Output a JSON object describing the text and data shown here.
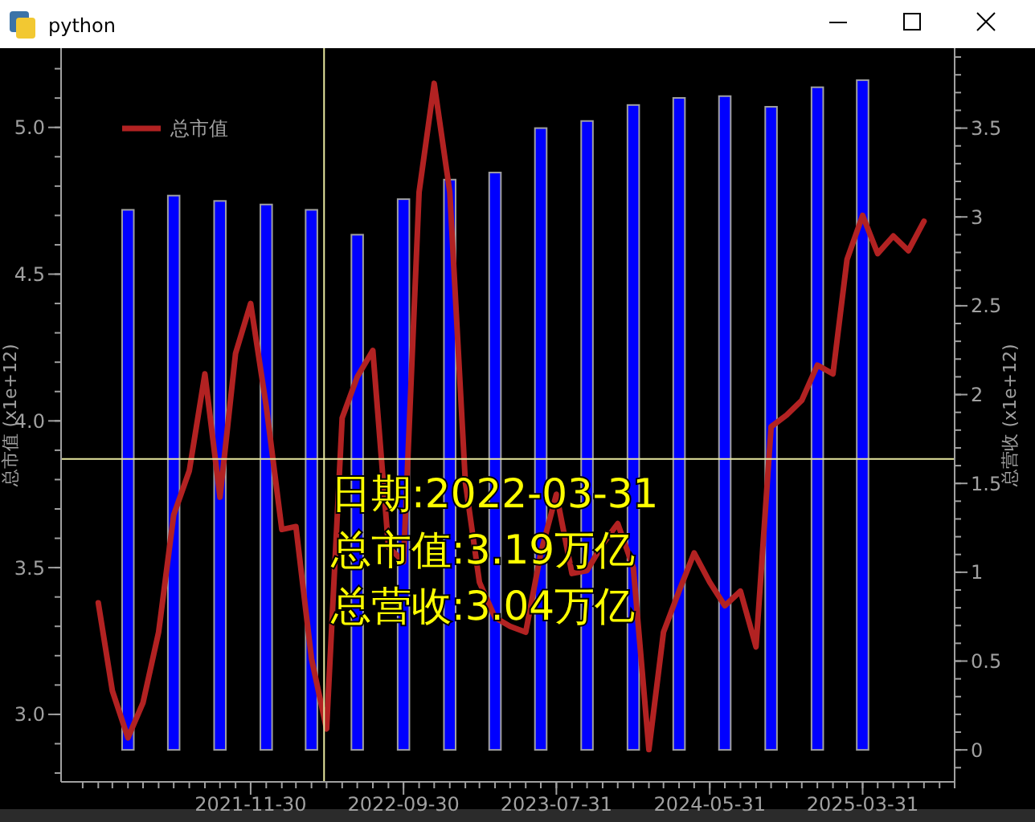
{
  "chart_data": {
    "type": "line",
    "title": "python",
    "xlim": [
      "2020-11-18",
      "2025-09-30"
    ],
    "xticks": [
      {
        "value": "2021-11-30",
        "label": "2021-11-30"
      },
      {
        "value": "2022-09-30",
        "label": "2022-09-30"
      },
      {
        "value": "2023-07-31",
        "label": "2023-07-31"
      },
      {
        "value": "2024-05-31",
        "label": "2024-05-31"
      },
      {
        "value": "2025-03-31",
        "label": "2025-03-31"
      }
    ],
    "ylim": [
      2.77,
      5.27
    ],
    "yticks": [
      {
        "value": 3,
        "label": "3.0"
      },
      {
        "value": 3.5,
        "label": "3.5"
      },
      {
        "value": 4,
        "label": "4.0"
      },
      {
        "value": 4.5,
        "label": "4.5"
      },
      {
        "value": 5,
        "label": "5.0"
      }
    ],
    "y2lim": [
      -0.18,
      3.95
    ],
    "y2ticks": [
      0,
      0.5,
      1,
      1.5,
      2,
      2.5,
      3,
      3.5
    ],
    "ylabel": "总市值 (x1e+12)",
    "y2label": "总营收 (x1e+12)",
    "legend": "top left",
    "grid": false,
    "series": [
      {
        "type": "bar",
        "axis": "y2",
        "color": "#0000ff",
        "x": [
          "2021-03-31",
          "2021-06-30",
          "2021-09-30",
          "2021-12-31",
          "2022-03-31",
          "2022-06-30",
          "2022-09-30",
          "2022-12-31",
          "2023-03-31",
          "2023-06-30",
          "2023-09-30",
          "2023-12-31",
          "2024-03-31",
          "2024-06-30",
          "2024-09-30",
          "2024-12-31",
          "2025-03-31"
        ],
        "values": [
          3.04,
          3.12,
          3.09,
          3.07,
          3.04,
          2.9,
          3.1,
          3.21,
          3.25,
          3.5,
          3.54,
          3.63,
          3.67,
          3.68,
          3.62,
          3.73,
          3.77
        ]
      },
      {
        "axis": "y",
        "name": "总市值",
        "color": "#b22222",
        "marker": "none",
        "line_style": "solid",
        "x": [
          "2021-01-31",
          "2021-02-28",
          "2021-03-31",
          "2021-04-30",
          "2021-05-31",
          "2021-06-30",
          "2021-07-31",
          "2021-08-31",
          "2021-09-30",
          "2021-10-31",
          "2021-11-30",
          "2021-12-31",
          "2022-01-31",
          "2022-02-28",
          "2022-03-31",
          "2022-04-30",
          "2022-05-31",
          "2022-06-30",
          "2022-07-31",
          "2022-08-31",
          "2022-09-30",
          "2022-10-31",
          "2022-11-30",
          "2022-12-31",
          "2023-01-31",
          "2023-02-28",
          "2023-03-31",
          "2023-04-30",
          "2023-05-31",
          "2023-06-30",
          "2023-07-31",
          "2023-08-31",
          "2023-09-30",
          "2023-10-31",
          "2023-11-30",
          "2023-12-31",
          "2024-01-31",
          "2024-02-29",
          "2024-03-31",
          "2024-04-30",
          "2024-05-31",
          "2024-06-30",
          "2024-07-31",
          "2024-08-31",
          "2024-09-30",
          "2024-10-31",
          "2024-11-30",
          "2024-12-31",
          "2025-01-31",
          "2025-02-28",
          "2025-03-31",
          "2025-04-30",
          "2025-05-31",
          "2025-06-30",
          "2025-07-31"
        ],
        "values": [
          3.38,
          3.08,
          2.92,
          3.04,
          3.28,
          3.68,
          3.83,
          4.16,
          3.74,
          4.23,
          4.4,
          4.05,
          3.63,
          3.64,
          3.19,
          2.95,
          4.01,
          4.15,
          4.24,
          3.57,
          3.52,
          4.78,
          5.15,
          4.78,
          3.79,
          3.45,
          3.33,
          3.3,
          3.28,
          3.55,
          3.75,
          3.48,
          3.49,
          3.58,
          3.65,
          3.5,
          2.88,
          3.28,
          3.42,
          3.55,
          3.45,
          3.37,
          3.42,
          3.23,
          3.98,
          4.02,
          4.07,
          4.19,
          4.16,
          4.55,
          4.7,
          4.57,
          4.63,
          4.58,
          4.68
        ]
      }
    ],
    "ref_lines": [
      {
        "axis": "x",
        "value": "2022-04-25",
        "color": "#e8e8a0"
      },
      {
        "axis": "y",
        "value": 3.87,
        "color": "#e8e8a0"
      }
    ],
    "annotations": [
      "日期:2022-03-31",
      "总市值:3.19万亿",
      "总营收:3.04万亿"
    ]
  }
}
